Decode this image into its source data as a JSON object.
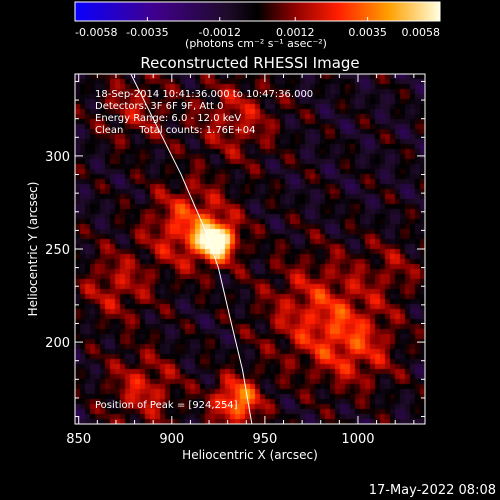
{
  "chart_data": {
    "type": "heatmap",
    "title": "Reconstructed RHESSI Image",
    "colorbar": {
      "ticks": [
        "-0.0058",
        "-0.0035",
        "-0.0012",
        "0.0012",
        "0.0035",
        "0.0058"
      ],
      "range": [
        -0.0058,
        0.0058
      ],
      "unit_label": "(photons cm⁻² s⁻¹ asec⁻²)"
    },
    "annotations": [
      "18-Sep-2014 10:41:36.000 to 10:47:36.000",
      "Detectors: 3F 6F 9F, Att 0",
      "Energy Range: 6.0 - 12.0 keV",
      "Clean     Total counts: 1.76E+04"
    ],
    "peak_label": "Position of Peak = [924,254]",
    "peak": {
      "x": 924,
      "y": 254
    },
    "xlabel": "Heliocentric X (arcsec)",
    "ylabel": "Heliocentric Y (arcsec)",
    "xlim": [
      848,
      1036
    ],
    "ylim": [
      156,
      344
    ],
    "x_ticks": [
      850,
      900,
      950,
      1000
    ],
    "y_ticks": [
      200,
      250,
      300
    ],
    "limb_line": [
      [
        878,
        344
      ],
      [
        890,
        320
      ],
      [
        905,
        290
      ],
      [
        918,
        260
      ],
      [
        925,
        240
      ],
      [
        932,
        210
      ],
      [
        938,
        185
      ],
      [
        943,
        156
      ]
    ],
    "sources": [
      {
        "x": 924,
        "y": 254,
        "amp": 1.0,
        "sigma": 7
      },
      {
        "x": 910,
        "y": 262,
        "amp": 0.55,
        "sigma": 16
      },
      {
        "x": 935,
        "y": 168,
        "amp": 0.75,
        "sigma": 9
      },
      {
        "x": 885,
        "y": 175,
        "amp": 0.4,
        "sigma": 14
      },
      {
        "x": 980,
        "y": 215,
        "amp": 0.45,
        "sigma": 22
      },
      {
        "x": 1000,
        "y": 195,
        "amp": 0.3,
        "sigma": 15
      },
      {
        "x": 870,
        "y": 230,
        "amp": 0.35,
        "sigma": 14
      },
      {
        "x": 880,
        "y": 325,
        "amp": 0.3,
        "sigma": 14
      },
      {
        "x": 935,
        "y": 320,
        "amp": 0.35,
        "sigma": 16
      },
      {
        "x": 1020,
        "y": 240,
        "amp": 0.2,
        "sigma": 12
      }
    ]
  },
  "footer": {
    "timestamp": "17-May-2022 08:08"
  }
}
